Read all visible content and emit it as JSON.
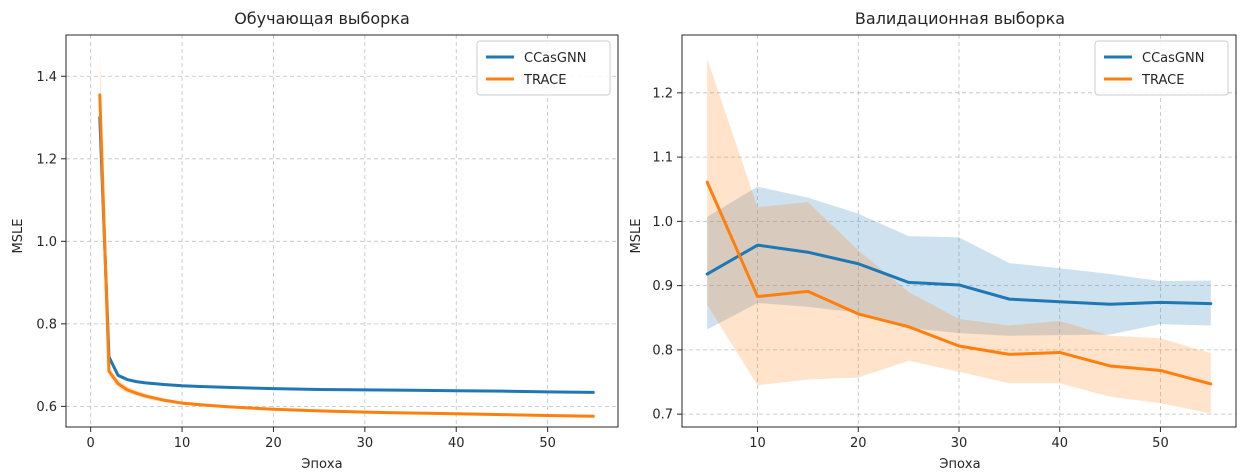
{
  "chart_data": [
    {
      "type": "line",
      "title": "Обучающая выборка",
      "xlabel": "Эпоха",
      "ylabel": "MSLE",
      "xlim": [
        -2.7,
        57.7
      ],
      "ylim": [
        0.55,
        1.5
      ],
      "xticks": [
        0,
        10,
        20,
        30,
        40,
        50
      ],
      "yticks": [
        0.6,
        0.8,
        1.0,
        1.2,
        1.4
      ],
      "ytick_labels": [
        "0.6",
        "0.8",
        "1.0",
        "1.2",
        "1.4"
      ],
      "grid": true,
      "legend_position": "top-right",
      "series": [
        {
          "name": "CCasGNN",
          "color": "#1f77b4",
          "x": [
            1,
            2,
            3,
            4,
            5,
            6,
            8,
            10,
            12,
            15,
            20,
            25,
            30,
            35,
            40,
            45,
            50,
            55
          ],
          "y": [
            1.3,
            0.72,
            0.675,
            0.665,
            0.66,
            0.657,
            0.653,
            0.65,
            0.648,
            0.646,
            0.643,
            0.641,
            0.64,
            0.639,
            0.638,
            0.637,
            0.635,
            0.634
          ],
          "band_lower": [
            1.28,
            0.71,
            0.67,
            0.661,
            0.657,
            0.654,
            0.65,
            0.648,
            0.646,
            0.644,
            0.641,
            0.639,
            0.638,
            0.637,
            0.636,
            0.635,
            0.633,
            0.632
          ],
          "band_upper": [
            1.32,
            0.73,
            0.68,
            0.669,
            0.663,
            0.66,
            0.656,
            0.652,
            0.65,
            0.648,
            0.645,
            0.643,
            0.642,
            0.641,
            0.64,
            0.639,
            0.637,
            0.636
          ]
        },
        {
          "name": "TRACE",
          "color": "#ff7f0e",
          "x": [
            1,
            2,
            3,
            4,
            5,
            6,
            8,
            10,
            12,
            15,
            20,
            25,
            30,
            35,
            40,
            45,
            50,
            55
          ],
          "y": [
            1.355,
            0.685,
            0.655,
            0.64,
            0.632,
            0.625,
            0.615,
            0.608,
            0.604,
            0.599,
            0.593,
            0.589,
            0.586,
            0.584,
            0.582,
            0.58,
            0.578,
            0.576
          ],
          "band_lower": [
            1.26,
            0.675,
            0.645,
            0.632,
            0.625,
            0.619,
            0.61,
            0.604,
            0.6,
            0.596,
            0.59,
            0.587,
            0.584,
            0.582,
            0.58,
            0.578,
            0.576,
            0.574
          ],
          "band_upper": [
            1.455,
            0.695,
            0.665,
            0.648,
            0.639,
            0.631,
            0.62,
            0.612,
            0.608,
            0.602,
            0.596,
            0.591,
            0.588,
            0.586,
            0.584,
            0.582,
            0.58,
            0.578
          ]
        }
      ]
    },
    {
      "type": "line",
      "title": "Валидационная выборка",
      "xlabel": "Эпоха",
      "ylabel": "MSLE",
      "xlim": [
        2.5,
        57.5
      ],
      "ylim": [
        0.68,
        1.29
      ],
      "xticks": [
        10,
        20,
        30,
        40,
        50
      ],
      "yticks": [
        0.7,
        0.8,
        0.9,
        1.0,
        1.1,
        1.2
      ],
      "ytick_labels": [
        "0.7",
        "0.8",
        "0.9",
        "1.0",
        "1.1",
        "1.2"
      ],
      "grid": true,
      "legend_position": "top-right",
      "series": [
        {
          "name": "CCasGNN",
          "color": "#1f77b4",
          "x": [
            5,
            10,
            15,
            20,
            25,
            30,
            35,
            40,
            45,
            50,
            55
          ],
          "y": [
            0.918,
            0.963,
            0.952,
            0.934,
            0.905,
            0.901,
            0.879,
            0.875,
            0.871,
            0.874,
            0.872
          ],
          "band_lower": [
            0.832,
            0.873,
            0.867,
            0.858,
            0.834,
            0.826,
            0.822,
            0.823,
            0.824,
            0.84,
            0.838
          ],
          "band_upper": [
            1.007,
            1.054,
            1.037,
            1.012,
            0.977,
            0.975,
            0.935,
            0.927,
            0.918,
            0.907,
            0.908
          ]
        },
        {
          "name": "TRACE",
          "color": "#ff7f0e",
          "x": [
            5,
            10,
            15,
            20,
            25,
            30,
            35,
            40,
            45,
            50,
            55
          ],
          "y": [
            1.061,
            0.883,
            0.891,
            0.856,
            0.836,
            0.806,
            0.793,
            0.796,
            0.775,
            0.768,
            0.747
          ],
          "band_lower": [
            0.87,
            0.745,
            0.754,
            0.757,
            0.783,
            0.766,
            0.748,
            0.748,
            0.727,
            0.717,
            0.701
          ],
          "band_upper": [
            1.253,
            1.022,
            1.03,
            0.955,
            0.89,
            0.848,
            0.838,
            0.845,
            0.822,
            0.818,
            0.795
          ]
        }
      ]
    }
  ]
}
